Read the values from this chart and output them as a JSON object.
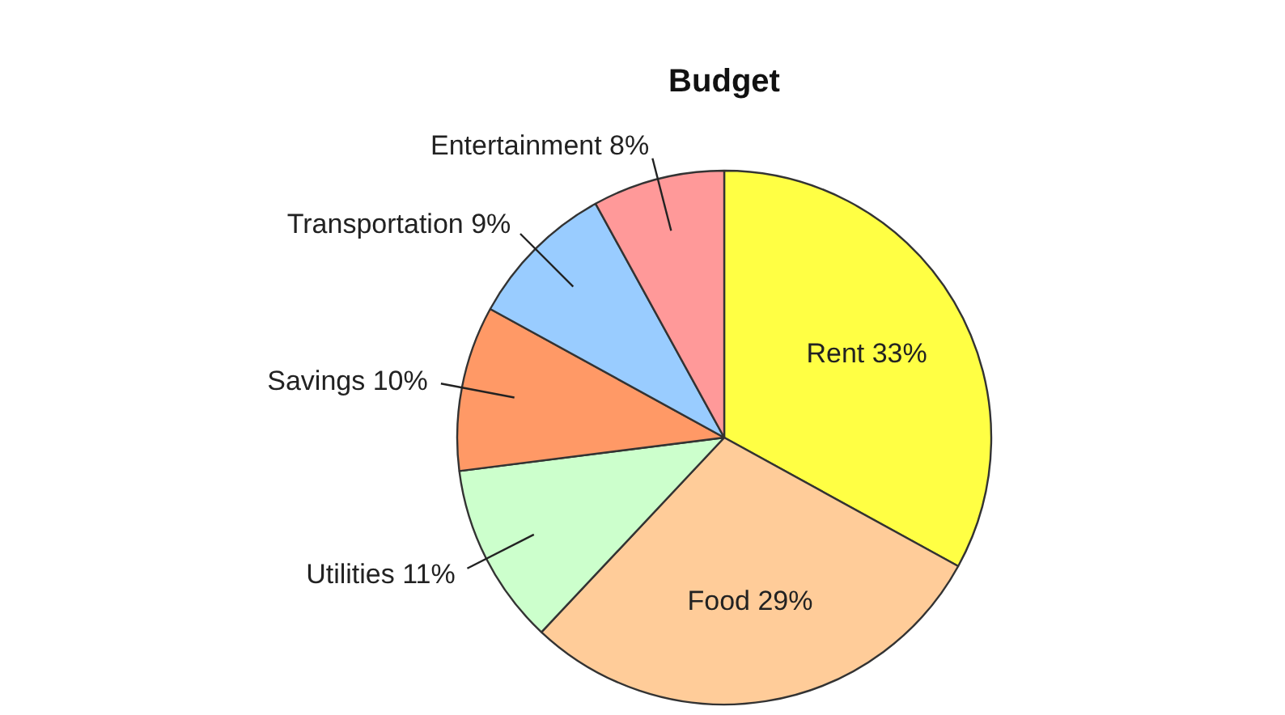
{
  "chart_data": {
    "type": "pie",
    "title": "Budget",
    "categories": [
      "Rent",
      "Food",
      "Utilities",
      "Savings",
      "Transportation",
      "Entertainment"
    ],
    "values": [
      33,
      29,
      11,
      10,
      9,
      8
    ],
    "colors": [
      "#ffff44",
      "#ffcc99",
      "#ccffcc",
      "#ff9966",
      "#99ccff",
      "#ff9999"
    ],
    "value_labels": [
      "33%",
      "29%",
      "11%",
      "10%",
      "9%",
      "8%"
    ]
  }
}
